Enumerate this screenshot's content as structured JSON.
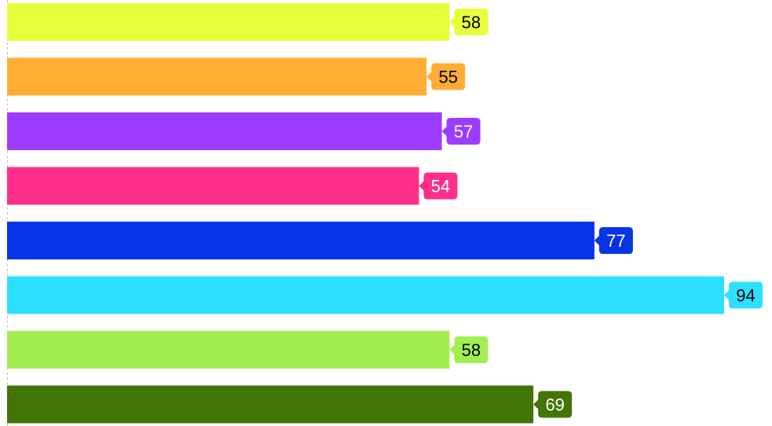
{
  "chart_data": {
    "type": "bar",
    "orientation": "horizontal",
    "values": [
      58,
      55,
      57,
      54,
      77,
      94,
      58,
      69
    ],
    "colors": [
      "#e6ff3c",
      "#ffad33",
      "#9d3cff",
      "#ff2e8a",
      "#0833e6",
      "#2ee0ff",
      "#a2ee50",
      "#427506"
    ],
    "label_text_colors": [
      "#000000",
      "#000000",
      "#ffffff",
      "#ffffff",
      "#ffffff",
      "#000000",
      "#000000",
      "#ffffff"
    ],
    "xlim": [
      0,
      94
    ],
    "grid": false,
    "data_labels": true
  }
}
